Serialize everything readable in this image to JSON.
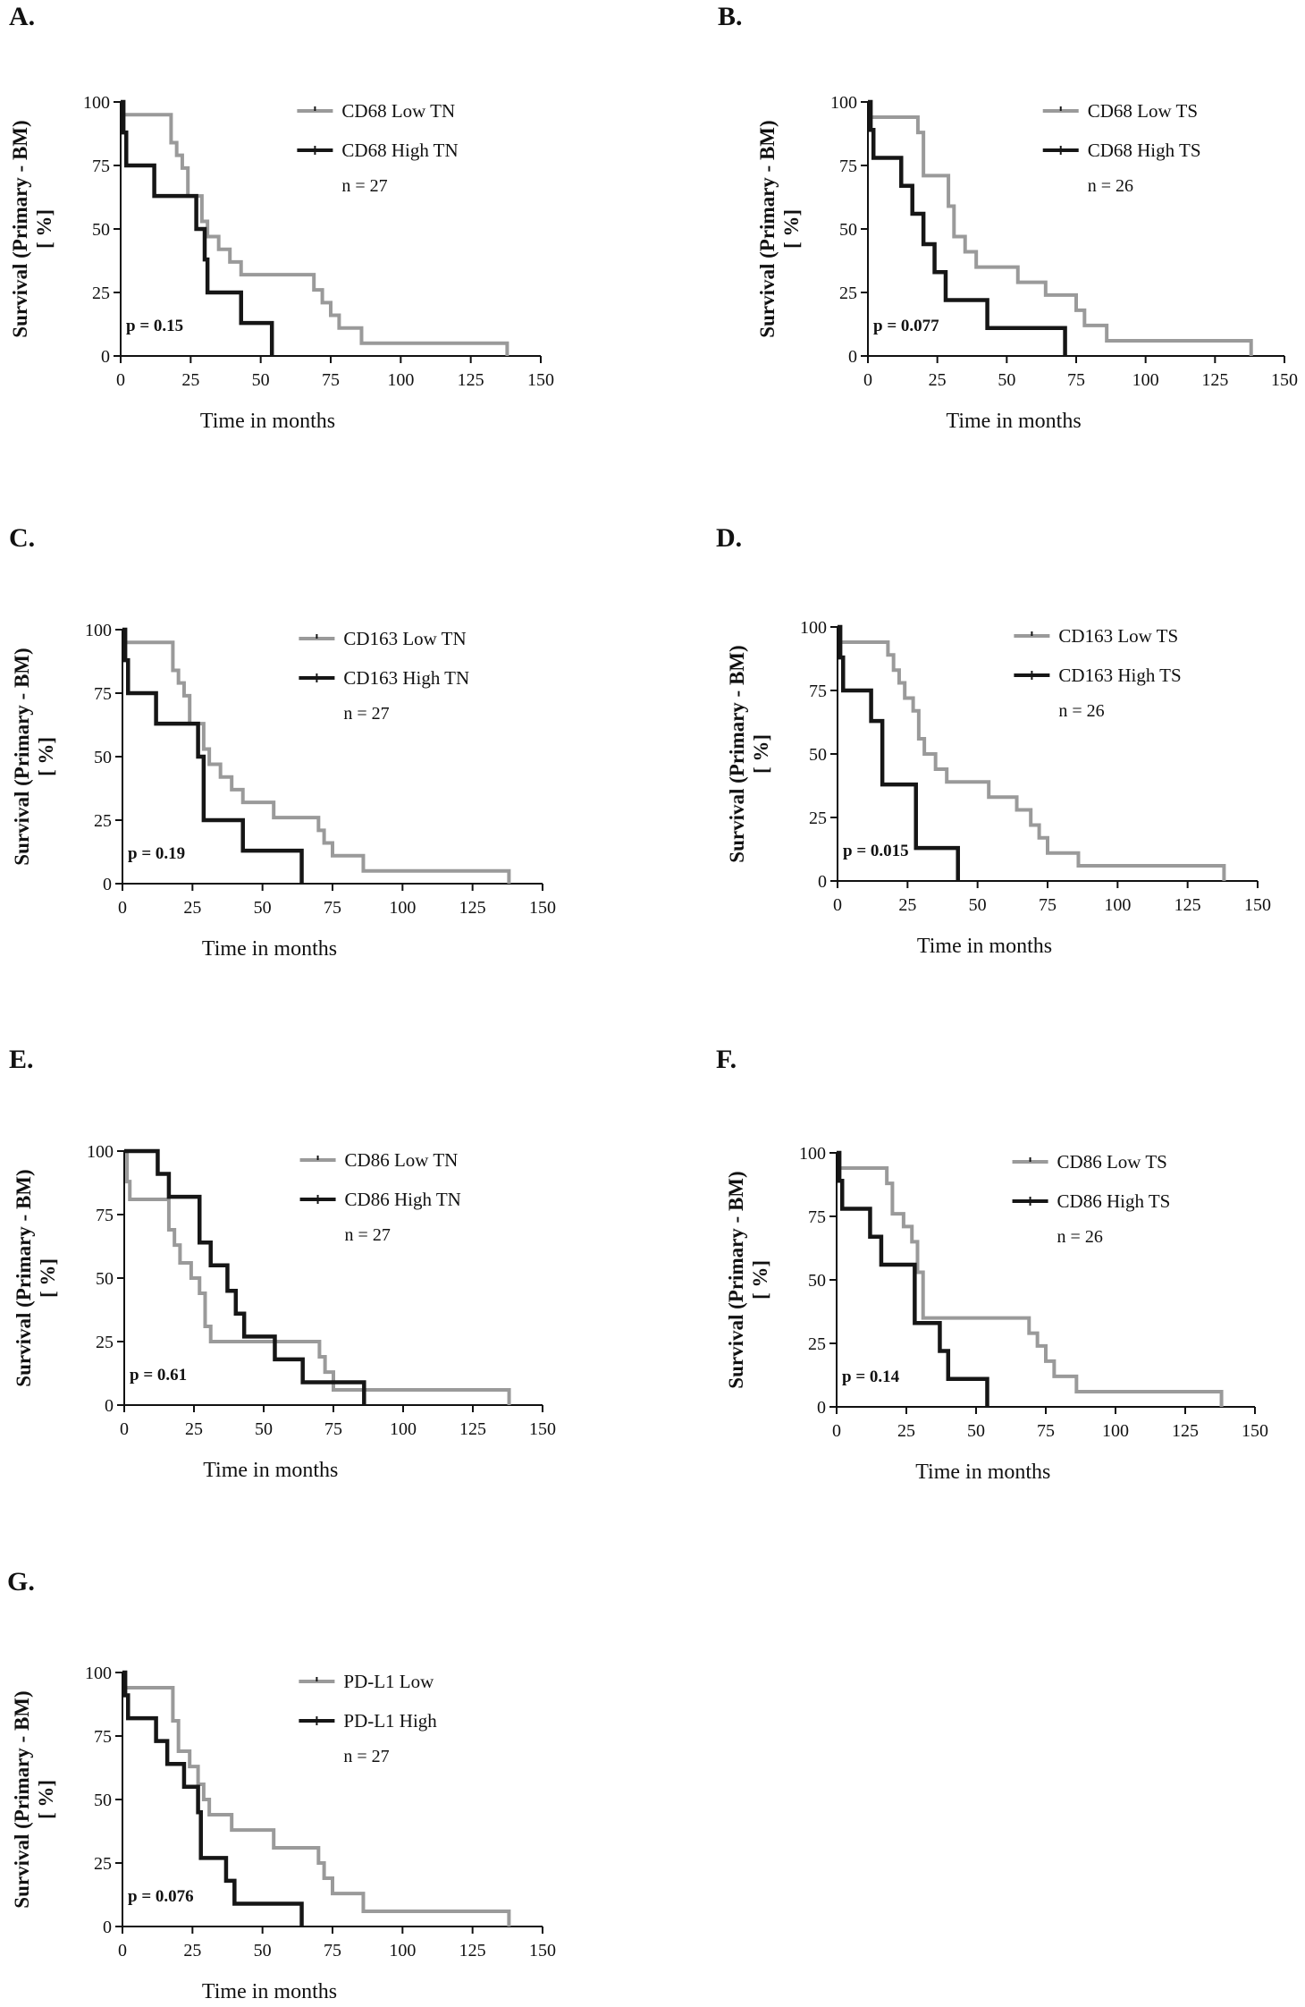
{
  "figure": {
    "colors": {
      "low": "#9a9a9a",
      "high": "#161616",
      "axis": "#111111"
    }
  },
  "chart_data": [
    {
      "panel": "A.",
      "type": "line",
      "step": true,
      "xlabel": "Time in months",
      "ylabel_line1": "Survival (Primary - BM)",
      "ylabel_line2": "[ %]",
      "xlim": [
        0,
        150
      ],
      "ylim": [
        0,
        100
      ],
      "xticks": [
        "0",
        "25",
        "50",
        "75",
        "100",
        "125",
        "150"
      ],
      "yticks": [
        "0",
        "25",
        "50",
        "75",
        "100"
      ],
      "n_label": "n = 27",
      "p_label": "p = 0.15",
      "series": [
        {
          "name": "CD68 Low TN",
          "role": "low",
          "x": [
            0,
            1,
            16,
            18,
            20,
            22,
            24,
            27,
            29,
            31,
            35,
            39,
            43,
            64,
            69,
            72,
            75,
            78,
            86,
            138
          ],
          "y": [
            100,
            95,
            95,
            84,
            79,
            74,
            63,
            63,
            53,
            47,
            42,
            37,
            32,
            32,
            26,
            21,
            16,
            11,
            5,
            0
          ]
        },
        {
          "name": "CD68 High TN",
          "role": "high",
          "x": [
            0,
            1,
            2,
            12,
            27,
            28,
            30,
            31,
            43,
            54
          ],
          "y": [
            100,
            88,
            75,
            63,
            50,
            50,
            38,
            25,
            13,
            0
          ]
        }
      ]
    },
    {
      "panel": "B.",
      "type": "line",
      "step": true,
      "xlabel": "Time in months",
      "ylabel_line1": "Survival (Primary - BM)",
      "ylabel_line2": "[ %]",
      "xlim": [
        0,
        150
      ],
      "ylim": [
        0,
        100
      ],
      "xticks": [
        "0",
        "25",
        "50",
        "75",
        "100",
        "125",
        "150"
      ],
      "yticks": [
        "0",
        "25",
        "50",
        "75",
        "100"
      ],
      "n_label": "n = 26",
      "p_label": "p = 0.077",
      "series": [
        {
          "name": "CD68 Low TS",
          "role": "low",
          "x": [
            0,
            1,
            16,
            18,
            20,
            27,
            29,
            31,
            35,
            39,
            43,
            54,
            64,
            69,
            75,
            78,
            86,
            138
          ],
          "y": [
            100,
            94,
            94,
            88,
            71,
            71,
            59,
            47,
            41,
            35,
            35,
            29,
            24,
            24,
            18,
            12,
            6,
            0
          ]
        },
        {
          "name": "CD68 High TS",
          "role": "high",
          "x": [
            0,
            1,
            2,
            12,
            16,
            20,
            24,
            27,
            28,
            43,
            71
          ],
          "y": [
            100,
            89,
            78,
            67,
            56,
            44,
            33,
            33,
            22,
            11,
            0
          ]
        }
      ]
    },
    {
      "panel": "C.",
      "type": "line",
      "step": true,
      "xlabel": "Time in months",
      "ylabel_line1": "Survival (Primary - BM)",
      "ylabel_line2": "[ %]",
      "xlim": [
        0,
        150
      ],
      "ylim": [
        0,
        100
      ],
      "xticks": [
        "0",
        "25",
        "50",
        "75",
        "100",
        "125",
        "150"
      ],
      "yticks": [
        "0",
        "25",
        "50",
        "75",
        "100"
      ],
      "n_label": "n = 27",
      "p_label": "p = 0.19",
      "series": [
        {
          "name": "CD163 Low TN",
          "role": "low",
          "x": [
            0,
            1,
            16,
            18,
            20,
            22,
            24,
            27,
            29,
            31,
            35,
            39,
            43,
            54,
            70,
            72,
            75,
            78,
            86,
            138
          ],
          "y": [
            100,
            95,
            95,
            84,
            79,
            74,
            63,
            63,
            53,
            47,
            42,
            37,
            32,
            26,
            21,
            16,
            11,
            11,
            5,
            0
          ]
        },
        {
          "name": "CD163 High TN",
          "role": "high",
          "x": [
            0,
            1,
            2,
            12,
            22,
            27,
            29,
            43,
            64
          ],
          "y": [
            100,
            88,
            75,
            63,
            63,
            50,
            25,
            13,
            0
          ]
        }
      ]
    },
    {
      "panel": "D.",
      "type": "line",
      "step": true,
      "xlabel": "Time in months",
      "ylabel_line1": "Survival (Primary - BM)",
      "ylabel_line2": "[ %]",
      "xlim": [
        0,
        150
      ],
      "ylim": [
        0,
        100
      ],
      "xticks": [
        "0",
        "25",
        "50",
        "75",
        "100",
        "125",
        "150"
      ],
      "yticks": [
        "0",
        "25",
        "50",
        "75",
        "100"
      ],
      "n_label": "n = 26",
      "p_label": "p = 0.015",
      "series": [
        {
          "name": "CD163 Low TS",
          "role": "low",
          "x": [
            0,
            1,
            16,
            18,
            20,
            22,
            24,
            27,
            29,
            31,
            35,
            39,
            54,
            64,
            69,
            72,
            75,
            78,
            86,
            138
          ],
          "y": [
            100,
            94,
            94,
            89,
            83,
            78,
            72,
            67,
            56,
            50,
            44,
            39,
            33,
            28,
            22,
            17,
            11,
            11,
            6,
            0
          ]
        },
        {
          "name": "CD163 High TS",
          "role": "high",
          "x": [
            0,
            1,
            2,
            12,
            16,
            28,
            43
          ],
          "y": [
            100,
            88,
            75,
            63,
            38,
            13,
            0
          ]
        }
      ]
    },
    {
      "panel": "E.",
      "type": "line",
      "step": true,
      "xlabel": "Time in months",
      "ylabel_line1": "Survival (Primary - BM)",
      "ylabel_line2": "[ %]",
      "xlim": [
        0,
        150
      ],
      "ylim": [
        0,
        100
      ],
      "xticks": [
        "0",
        "25",
        "50",
        "75",
        "100",
        "125",
        "150"
      ],
      "yticks": [
        "0",
        "25",
        "50",
        "75",
        "100"
      ],
      "n_label": "n = 27",
      "p_label": "p = 0.61",
      "series": [
        {
          "name": "CD86 Low TN",
          "role": "low",
          "x": [
            0,
            1,
            2,
            12,
            16,
            18,
            20,
            24,
            27,
            29,
            31,
            64,
            70,
            72,
            75,
            86,
            138
          ],
          "y": [
            100,
            88,
            81,
            81,
            69,
            63,
            56,
            50,
            44,
            31,
            25,
            25,
            19,
            13,
            6,
            6,
            0
          ]
        },
        {
          "name": "CD86 High TN",
          "role": "high",
          "x": [
            0,
            12,
            16,
            27,
            31,
            37,
            40,
            43,
            54,
            64,
            86
          ],
          "y": [
            100,
            91,
            82,
            64,
            55,
            45,
            36,
            27,
            18,
            9,
            0
          ]
        }
      ]
    },
    {
      "panel": "F.",
      "type": "line",
      "step": true,
      "xlabel": "Time in months",
      "ylabel_line1": "Survival (Primary - BM)",
      "ylabel_line2": "[ %]",
      "xlim": [
        0,
        150
      ],
      "ylim": [
        0,
        100
      ],
      "xticks": [
        "0",
        "25",
        "50",
        "75",
        "100",
        "125",
        "150"
      ],
      "yticks": [
        "0",
        "25",
        "50",
        "75",
        "100"
      ],
      "n_label": "n = 26",
      "p_label": "p = 0.14",
      "series": [
        {
          "name": "CD86 Low TS",
          "role": "low",
          "x": [
            0,
            1,
            16,
            18,
            20,
            24,
            27,
            29,
            31,
            64,
            69,
            72,
            75,
            78,
            86,
            138
          ],
          "y": [
            100,
            94,
            94,
            88,
            76,
            71,
            65,
            53,
            35,
            35,
            29,
            24,
            18,
            12,
            6,
            0
          ]
        },
        {
          "name": "CD86 High TS",
          "role": "high",
          "x": [
            0,
            1,
            2,
            12,
            16,
            27,
            28,
            37,
            40,
            54
          ],
          "y": [
            100,
            89,
            78,
            67,
            56,
            56,
            33,
            22,
            11,
            0
          ]
        }
      ]
    },
    {
      "panel": "G.",
      "type": "line",
      "step": true,
      "xlabel": "Time in months",
      "ylabel_line1": "Survival (Primary - BM)",
      "ylabel_line2": "[ %]",
      "xlim": [
        0,
        150
      ],
      "ylim": [
        0,
        100
      ],
      "xticks": [
        "0",
        "25",
        "50",
        "75",
        "100",
        "125",
        "150"
      ],
      "yticks": [
        "0",
        "25",
        "50",
        "75",
        "100"
      ],
      "n_label": "n = 27",
      "p_label": "p = 0.076",
      "series": [
        {
          "name": "PD-L1 Low",
          "role": "low",
          "x": [
            0,
            1,
            16,
            18,
            20,
            24,
            27,
            29,
            31,
            39,
            54,
            70,
            72,
            75,
            78,
            86,
            138
          ],
          "y": [
            100,
            94,
            94,
            81,
            69,
            63,
            56,
            50,
            44,
            38,
            31,
            25,
            19,
            13,
            13,
            6,
            0
          ]
        },
        {
          "name": "PD-L1 High",
          "role": "high",
          "x": [
            0,
            1,
            2,
            12,
            16,
            22,
            27,
            28,
            37,
            40,
            64
          ],
          "y": [
            100,
            91,
            82,
            73,
            64,
            55,
            45,
            27,
            18,
            9,
            0
          ]
        }
      ]
    }
  ]
}
